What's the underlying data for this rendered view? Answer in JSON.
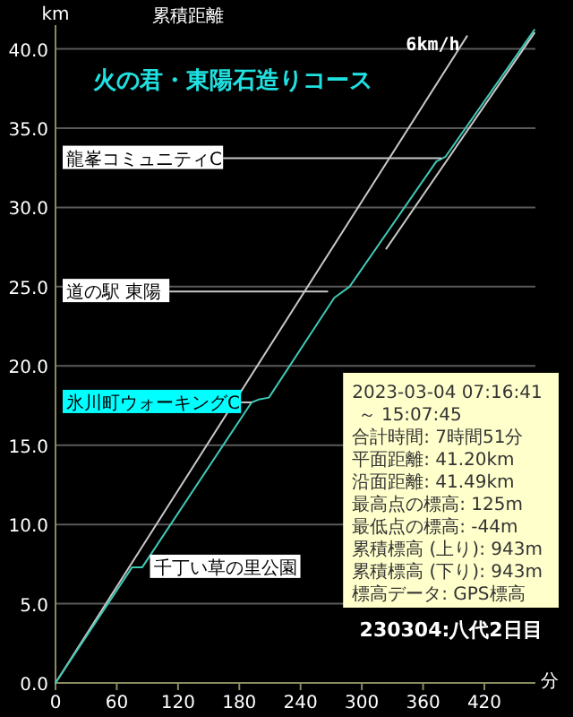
{
  "chart_data": {
    "type": "line",
    "title": "累積距離",
    "subtitle": "火の君・東陽石造りコース",
    "xlabel": "分",
    "ylabel": "km",
    "xlim": [
      0,
      470
    ],
    "ylim": [
      0,
      41.5
    ],
    "xticks": [
      0,
      60,
      120,
      180,
      240,
      300,
      360,
      420
    ],
    "yticks": [
      {
        "value": 0,
        "label": "0.0"
      },
      {
        "value": 5,
        "label": "5.0"
      },
      {
        "value": 10,
        "label": "10.0"
      },
      {
        "value": 15,
        "label": "15.0"
      },
      {
        "value": 20,
        "label": "20.0"
      },
      {
        "value": 25,
        "label": "25.0"
      },
      {
        "value": 30,
        "label": "30.0"
      },
      {
        "value": 35,
        "label": "35.0"
      },
      {
        "value": 40,
        "label": "40.0"
      }
    ],
    "grid": "y",
    "marker": "none",
    "line_style": "solid",
    "series": [
      {
        "name": "6km/h",
        "color": "#c8c8c8",
        "x": [
          0,
          403
        ],
        "values": [
          0,
          40.8
        ]
      },
      {
        "color": "#c8c8c8",
        "x": [
          324,
          469
        ],
        "values": [
          27.4,
          41
        ]
      },
      {
        "color": "#40c8b4",
        "x": [
          0,
          75,
          85,
          192,
          200,
          209,
          270,
          273,
          288,
          373,
          382,
          469
        ],
        "values": [
          0,
          7.3,
          7.3,
          17.7,
          17.9,
          18,
          24,
          24.3,
          25,
          32.9,
          33.2,
          41.2
        ]
      }
    ],
    "annotations": [
      {
        "text": "千丁い草の里公園",
        "x": 75,
        "y": 7.3
      },
      {
        "text": "氷川町ウォーキングC",
        "x": 192,
        "y": 17.7
      },
      {
        "text": "道の駅 東陽",
        "x": 267,
        "y": 24.7
      },
      {
        "text": "龍峯コミュニティC",
        "x": 378,
        "y": 33.1
      },
      "2023-03-04 07:16:41",
      " ～ 15:07:45",
      "合計時間: 7時間51分",
      "平面距離: 41.20km",
      "沿面距離: 41.49km",
      "最高点の標高: 125m",
      "最低点の標高: -44m",
      "累積標高 (上り): 943m",
      "累積標高 (下り): 943m",
      "標高データ: GPS標高",
      "230304:八代2日目"
    ]
  }
}
